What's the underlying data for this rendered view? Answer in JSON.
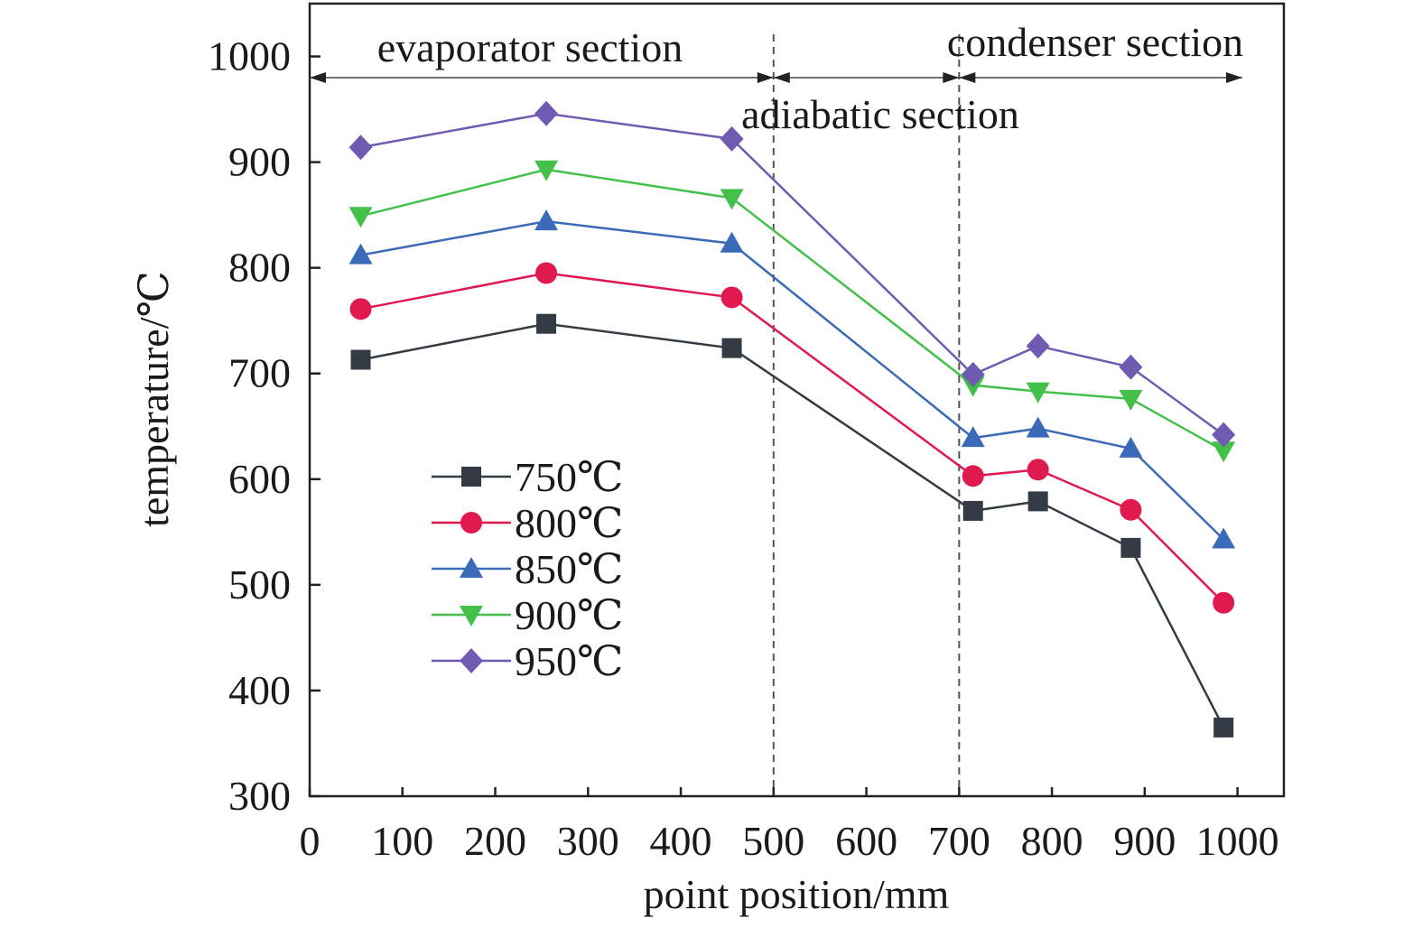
{
  "chart_data": {
    "type": "line",
    "title": "",
    "xlabel": "point position/mm",
    "ylabel": "temperature/℃",
    "xlim": [
      0,
      1050
    ],
    "ylim": [
      300,
      1050
    ],
    "x_ticks": [
      0,
      100,
      200,
      300,
      400,
      500,
      600,
      700,
      800,
      900,
      1000
    ],
    "x_tick_labels": [
      "0",
      "100",
      "200",
      "300",
      "400",
      "500",
      "600",
      "700",
      "800",
      "900",
      "1000"
    ],
    "y_ticks": [
      300,
      400,
      500,
      600,
      700,
      800,
      900,
      1000
    ],
    "y_tick_labels": [
      "300",
      "400",
      "500",
      "600",
      "700",
      "800",
      "900",
      "1000"
    ],
    "grid": false,
    "legend_position": "left-middle",
    "x": [
      55,
      255,
      455,
      715,
      785,
      885,
      985
    ],
    "series": [
      {
        "name": "750℃",
        "marker": "square",
        "color": "#333c44",
        "values": [
          713,
          747,
          724,
          570,
          579,
          535,
          365
        ]
      },
      {
        "name": "800℃",
        "marker": "circle",
        "color": "#e0194f",
        "values": [
          761,
          795,
          772,
          603,
          609,
          571,
          483
        ]
      },
      {
        "name": "850℃",
        "marker": "triangle-up",
        "color": "#3b6bb8",
        "values": [
          812,
          844,
          823,
          639,
          648,
          629,
          543
        ]
      },
      {
        "name": "900℃",
        "marker": "triangle-down",
        "color": "#43c04a",
        "values": [
          849,
          893,
          866,
          689,
          683,
          676,
          627
        ]
      },
      {
        "name": "950℃",
        "marker": "diamond",
        "color": "#6f5bb2",
        "values": [
          914,
          946,
          922,
          699,
          726,
          706,
          642
        ]
      }
    ],
    "section_dividers": [
      500,
      700
    ],
    "annotations": {
      "evaporator": "evaporator section",
      "adiabatic": "adiabatic section",
      "condenser": "condenser section"
    }
  }
}
